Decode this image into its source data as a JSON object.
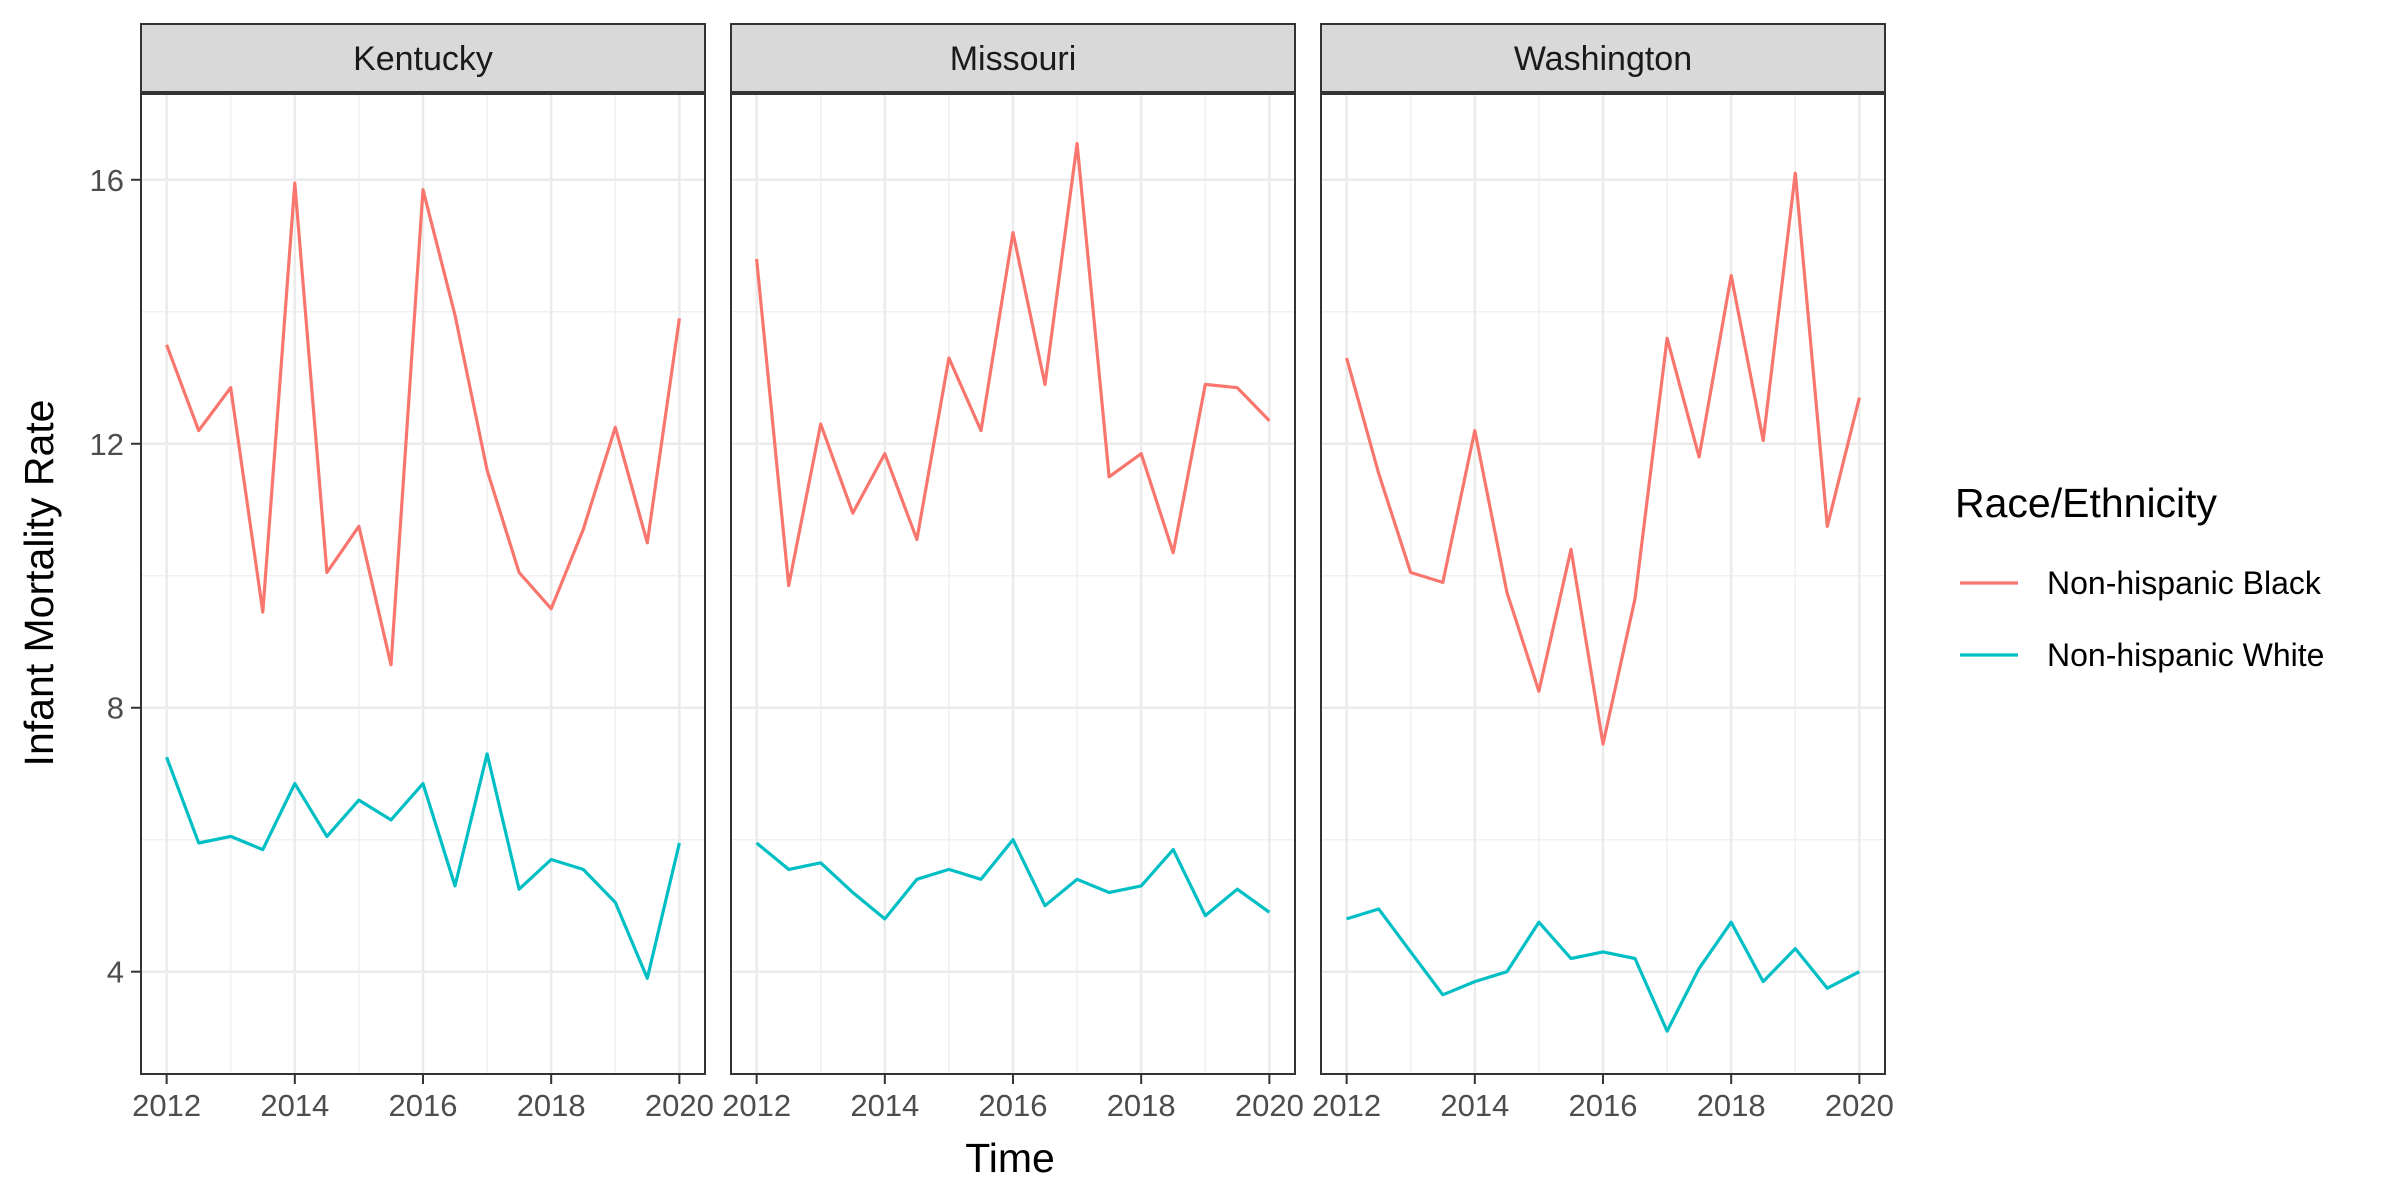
{
  "chart_data": {
    "type": "line",
    "xlabel": "Time",
    "ylabel": "Infant Mortality Rate",
    "x": [
      2012,
      2012.5,
      2013,
      2013.5,
      2014,
      2014.5,
      2015,
      2015.5,
      2016,
      2016.5,
      2017,
      2017.5,
      2018,
      2018.5,
      2019,
      2019.5,
      2020
    ],
    "xlim": [
      2011.6,
      2020.4
    ],
    "ylim": [
      2.45,
      17.3
    ],
    "x_ticks": [
      2012,
      2014,
      2016,
      2018,
      2020
    ],
    "y_ticks": [
      4,
      8,
      12,
      16
    ],
    "grid": true,
    "legend": {
      "title": "Race/Ethnicity",
      "position": "right",
      "entries": [
        {
          "name": "Non-hispanic Black",
          "color": "#F8766D"
        },
        {
          "name": "Non-hispanic White",
          "color": "#00BFC4"
        }
      ]
    },
    "panels": [
      {
        "name": "Kentucky",
        "series": [
          {
            "name": "Non-hispanic Black",
            "values": [
              13.5,
              12.2,
              12.85,
              9.45,
              15.95,
              10.05,
              10.75,
              8.65,
              15.85,
              13.95,
              11.6,
              10.05,
              9.5,
              10.7,
              12.25,
              10.5,
              13.9
            ]
          },
          {
            "name": "Non-hispanic White",
            "values": [
              7.25,
              5.95,
              6.05,
              5.85,
              6.85,
              6.05,
              6.6,
              6.3,
              6.85,
              5.3,
              7.3,
              5.25,
              5.7,
              5.55,
              5.05,
              3.9,
              5.95
            ]
          }
        ]
      },
      {
        "name": "Missouri",
        "series": [
          {
            "name": "Non-hispanic Black",
            "values": [
              14.8,
              9.85,
              12.3,
              10.95,
              11.85,
              10.55,
              13.3,
              12.2,
              15.2,
              12.9,
              16.55,
              11.5,
              11.85,
              10.35,
              12.9,
              12.85,
              12.35
            ]
          },
          {
            "name": "Non-hispanic White",
            "values": [
              5.95,
              5.55,
              5.65,
              5.2,
              4.8,
              5.4,
              5.55,
              5.4,
              6.0,
              5.0,
              5.4,
              5.2,
              5.3,
              5.85,
              4.85,
              5.25,
              4.9
            ]
          }
        ]
      },
      {
        "name": "Washington",
        "series": [
          {
            "name": "Non-hispanic Black",
            "values": [
              13.3,
              11.55,
              10.05,
              9.9,
              12.2,
              9.75,
              8.25,
              10.4,
              7.45,
              9.65,
              13.6,
              11.8,
              14.55,
              12.05,
              16.1,
              10.75,
              12.7
            ]
          },
          {
            "name": "Non-hispanic White",
            "values": [
              4.8,
              4.95,
              4.3,
              3.65,
              3.85,
              4.0,
              4.75,
              4.2,
              4.3,
              4.2,
              3.1,
              4.05,
              4.75,
              3.85,
              4.35,
              3.75,
              4.0
            ]
          }
        ]
      }
    ]
  }
}
